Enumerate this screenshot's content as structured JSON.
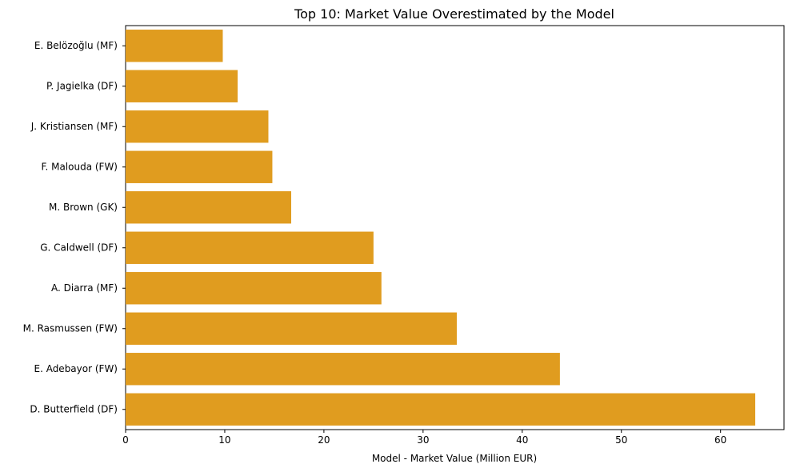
{
  "chart_data": {
    "type": "bar",
    "orientation": "horizontal",
    "title": "Top 10: Market Value Overestimated by the Model",
    "xlabel": "Model - Market Value (Million EUR)",
    "ylabel": "",
    "categories": [
      "E. Belözoğlu (MF)",
      "P. Jagielka (DF)",
      "J. Kristiansen (MF)",
      "F. Malouda (FW)",
      "M. Brown (GK)",
      "G. Caldwell (DF)",
      "A. Diarra (MF)",
      "M. Rasmussen (FW)",
      "E. Adebayor (FW)",
      "D. Butterfield (DF)"
    ],
    "values": [
      9.8,
      11.3,
      14.4,
      14.8,
      16.7,
      25.0,
      25.8,
      33.4,
      43.8,
      63.5
    ],
    "xlim": [
      0,
      66.4
    ],
    "xticks": [
      0,
      10,
      20,
      30,
      40,
      50,
      60
    ],
    "xtick_labels": [
      "0",
      "10",
      "20",
      "30",
      "40",
      "50",
      "60"
    ],
    "bar_color": "#e09c1f",
    "grid": false,
    "legend": "none"
  }
}
